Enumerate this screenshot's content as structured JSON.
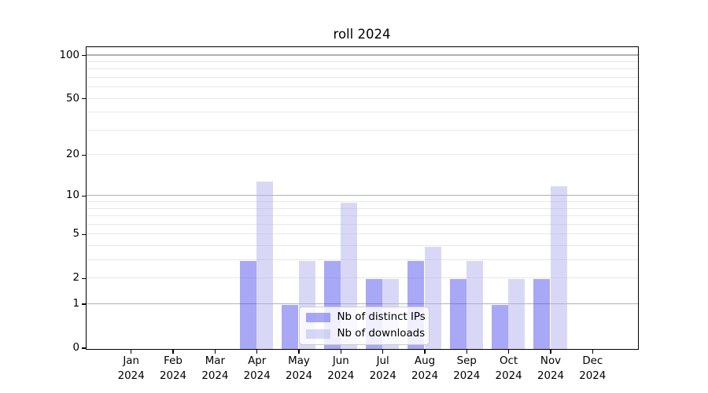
{
  "figure": {
    "background": "#ffffff"
  },
  "chart_data": {
    "type": "bar",
    "title": "roll 2024",
    "categories": [
      "Jan",
      "Feb",
      "Mar",
      "Apr",
      "May",
      "Jun",
      "Jul",
      "Aug",
      "Sep",
      "Oct",
      "Nov",
      "Dec"
    ],
    "category_sublabel": "2024",
    "series": [
      {
        "name": "Nb of distinct IPs",
        "color": "rgba(88,88,240,0.52)",
        "values": [
          0,
          0,
          0,
          3,
          1,
          3,
          2,
          3,
          2,
          1,
          2,
          0
        ]
      },
      {
        "name": "Nb of downloads",
        "color": "rgba(181,181,238,0.52)",
        "values": [
          0,
          0,
          0,
          13,
          3,
          9,
          2,
          4,
          3,
          2,
          12,
          0
        ]
      }
    ],
    "xlabel": "",
    "ylabel": "",
    "yscale": "log1p",
    "ylim": [
      0,
      114
    ],
    "yticks": [
      0,
      1,
      2,
      5,
      10,
      20,
      50,
      100
    ],
    "yticks_major_gridlines": [
      1,
      10,
      100
    ],
    "yticks_minor": [
      3,
      4,
      6,
      7,
      8,
      9,
      30,
      40,
      60,
      70,
      80,
      90
    ],
    "grid": true,
    "legend_position": "lower center"
  }
}
